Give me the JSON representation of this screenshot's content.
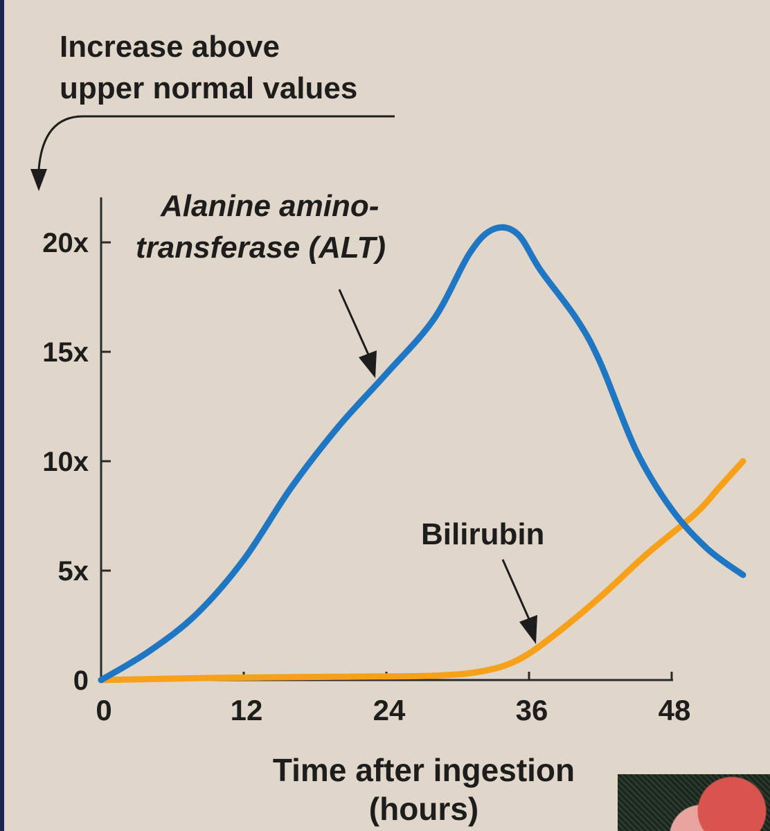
{
  "chart_data": {
    "type": "line",
    "title": "",
    "ylabel_lines": [
      "Increase above",
      "upper normal values"
    ],
    "xlabel_lines": [
      "Time after ingestion",
      "(hours)"
    ],
    "x_ticks": [
      {
        "value": 0,
        "label": "0"
      },
      {
        "value": 12,
        "label": "12"
      },
      {
        "value": 24,
        "label": "24"
      },
      {
        "value": 36,
        "label": "36"
      },
      {
        "value": 48,
        "label": "48"
      }
    ],
    "y_ticks": [
      {
        "value": 0,
        "label": "0"
      },
      {
        "value": 5,
        "label": "5x"
      },
      {
        "value": 10,
        "label": "10x"
      },
      {
        "value": 15,
        "label": "15x"
      },
      {
        "value": 20,
        "label": "20x"
      }
    ],
    "xlim": [
      0,
      48
    ],
    "ylim": [
      0,
      20
    ],
    "grid": false,
    "series": [
      {
        "name": "Alanine amino-transferase (ALT)",
        "label_lines": [
          "Alanine amino-",
          "transferase (ALT)"
        ],
        "color": "#1f77c4",
        "points": [
          [
            0,
            0
          ],
          [
            4,
            1.3
          ],
          [
            8,
            3
          ],
          [
            12,
            5.5
          ],
          [
            16,
            8.8
          ],
          [
            20,
            11.6
          ],
          [
            24,
            14
          ],
          [
            28,
            16.5
          ],
          [
            31,
            19.5
          ],
          [
            33,
            20.6
          ],
          [
            35,
            20.4
          ],
          [
            37,
            18.7
          ],
          [
            40,
            16.5
          ],
          [
            42,
            14.5
          ],
          [
            45,
            10.5
          ],
          [
            48,
            7.8
          ],
          [
            51,
            6
          ],
          [
            54,
            4.8
          ]
        ]
      },
      {
        "name": "Bilirubin",
        "label_lines": [
          "Bilirubin"
        ],
        "color": "#f7a11a",
        "points": [
          [
            0,
            0
          ],
          [
            10,
            0.1
          ],
          [
            20,
            0.15
          ],
          [
            28,
            0.2
          ],
          [
            32,
            0.4
          ],
          [
            35,
            0.9
          ],
          [
            38,
            2
          ],
          [
            42,
            3.8
          ],
          [
            46,
            5.8
          ],
          [
            50,
            7.6
          ],
          [
            52,
            8.8
          ],
          [
            54,
            10
          ]
        ]
      }
    ]
  }
}
